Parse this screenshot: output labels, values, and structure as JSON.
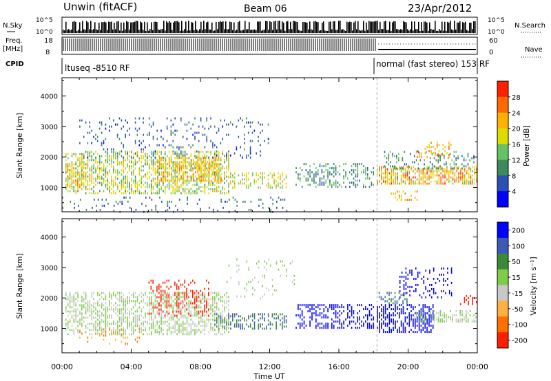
{
  "header": {
    "station": "Unwin (fitACF)",
    "beam": "Beam 06",
    "date": "23/Apr/2012"
  },
  "status_strip": {
    "nsky_label": "N.Sky",
    "nsky_ticks": [
      "10^5",
      "10^0"
    ],
    "nsearch_label": "N.Search",
    "nsearch_ticks": [
      "10^5",
      "10^0"
    ],
    "freq_label": "Freq.",
    "freq_unit": "[MHz]",
    "freq_ticks": [
      "18",
      "8"
    ],
    "nave_label": "Nave",
    "nave_ticks": [
      "60",
      "0"
    ],
    "cpid_label": "CPID",
    "cpid_segments": [
      {
        "label": "ltuseq -8510 RF",
        "start_h": 0,
        "end_h": 18
      },
      {
        "label": "normal (fast stereo) 153 RF",
        "start_h": 18,
        "end_h": 24
      }
    ]
  },
  "x_axis": {
    "label": "Time UT",
    "tick_labels": [
      "00:00",
      "04:00",
      "08:00",
      "12:00",
      "16:00",
      "20:00",
      "00:00"
    ]
  },
  "chart_data": [
    {
      "type": "heatmap",
      "name": "power",
      "x_range_hours": [
        0,
        24
      ],
      "ylim": [
        200,
        4600
      ],
      "ylabel": "Slant Range [km]",
      "yticks": [
        1000,
        2000,
        3000,
        4000
      ],
      "colorbar": {
        "label": "Power [dB]",
        "ticks": [
          4,
          8,
          12,
          16,
          20,
          24,
          28
        ],
        "range": [
          0,
          32
        ],
        "colors": [
          "#0000ff",
          "#2a4fb5",
          "#3c8a5a",
          "#66c266",
          "#dcdc00",
          "#ffb000",
          "#ff6a00",
          "#ff2000"
        ]
      },
      "mode_change_h": 18.2,
      "regions": [
        {
          "t0": 0.2,
          "t1": 9.6,
          "r0": 800,
          "r1": 2200,
          "v0": 10,
          "v1": 22,
          "density": 0.55
        },
        {
          "t0": 5.5,
          "t1": 9.2,
          "r0": 1200,
          "r1": 2000,
          "v0": 16,
          "v1": 26,
          "density": 0.6
        },
        {
          "t0": 0.3,
          "t1": 1.5,
          "r0": 1000,
          "r1": 1800,
          "v0": 16,
          "v1": 26,
          "density": 0.5
        },
        {
          "t0": 9.6,
          "t1": 13.0,
          "r0": 1000,
          "r1": 1500,
          "v0": 12,
          "v1": 22,
          "density": 0.45
        },
        {
          "t0": 1.0,
          "t1": 12.0,
          "r0": 2000,
          "r1": 3300,
          "v0": 3,
          "v1": 10,
          "density": 0.12
        },
        {
          "t0": 13.5,
          "t1": 18.0,
          "r0": 1000,
          "r1": 1800,
          "v0": 6,
          "v1": 15,
          "density": 0.35
        },
        {
          "t0": 18.2,
          "t1": 24.0,
          "r0": 1100,
          "r1": 1700,
          "v0": 14,
          "v1": 30,
          "density": 0.65
        },
        {
          "t0": 18.5,
          "t1": 23.8,
          "r0": 1600,
          "r1": 2200,
          "v0": 5,
          "v1": 14,
          "density": 0.3
        },
        {
          "t0": 20.5,
          "t1": 22.5,
          "r0": 2000,
          "r1": 2500,
          "v0": 18,
          "v1": 28,
          "density": 0.3
        },
        {
          "t0": 19.0,
          "t1": 20.5,
          "r0": 600,
          "r1": 900,
          "v0": 16,
          "v1": 26,
          "density": 0.4
        },
        {
          "t0": 0.0,
          "t1": 13.0,
          "r0": 200,
          "r1": 700,
          "v0": 3,
          "v1": 12,
          "density": 0.1
        }
      ]
    },
    {
      "type": "heatmap",
      "name": "velocity",
      "x_range_hours": [
        0,
        24
      ],
      "ylim": [
        200,
        4600
      ],
      "ylabel": "Slant Range [km]",
      "yticks": [
        1000,
        2000,
        3000,
        4000
      ],
      "colorbar": {
        "label": "Velocity [m s⁻¹]",
        "ticks": [
          200,
          100,
          50,
          15,
          -15,
          -50,
          -100,
          -200
        ],
        "colors": [
          "#0000ff",
          "#3d59b8",
          "#3a8a3a",
          "#7fcc4a",
          "#c8c8c8",
          "#ffb040",
          "#ff7000",
          "#ff1e00"
        ]
      },
      "mode_change_h": 18.2,
      "regions": [
        {
          "t0": 0.2,
          "t1": 9.6,
          "r0": 800,
          "r1": 2200,
          "v0": -15,
          "v1": 15,
          "density": 0.55
        },
        {
          "t0": 5.0,
          "t1": 8.5,
          "r0": 1400,
          "r1": 2600,
          "v0": -250,
          "v1": -120,
          "density": 0.3
        },
        {
          "t0": 8.8,
          "t1": 13.0,
          "r0": 1000,
          "r1": 1500,
          "v0": 20,
          "v1": 80,
          "density": 0.5
        },
        {
          "t0": 13.5,
          "t1": 18.0,
          "r0": 1000,
          "r1": 1800,
          "v0": 120,
          "v1": 250,
          "density": 0.45
        },
        {
          "t0": 18.2,
          "t1": 21.5,
          "r0": 900,
          "r1": 1800,
          "v0": 150,
          "v1": 250,
          "density": 0.6
        },
        {
          "t0": 19.5,
          "t1": 22.5,
          "r0": 2000,
          "r1": 3000,
          "v0": 150,
          "v1": 250,
          "density": 0.25
        },
        {
          "t0": 20.0,
          "t1": 24.0,
          "r0": 1200,
          "r1": 1600,
          "v0": -15,
          "v1": 15,
          "density": 0.55
        },
        {
          "t0": 18.3,
          "t1": 20.0,
          "r0": 1800,
          "r1": 2200,
          "v0": 20,
          "v1": 80,
          "density": 0.35
        },
        {
          "t0": 23.0,
          "t1": 24.0,
          "r0": 1800,
          "r1": 2100,
          "v0": -250,
          "v1": -150,
          "density": 0.4
        },
        {
          "t0": 1.0,
          "t1": 4.5,
          "r0": 500,
          "r1": 1000,
          "v0": -80,
          "v1": -30,
          "density": 0.15
        },
        {
          "t0": 9.5,
          "t1": 13.5,
          "r0": 2000,
          "r1": 3300,
          "v0": -15,
          "v1": 15,
          "density": 0.1
        }
      ]
    }
  ]
}
